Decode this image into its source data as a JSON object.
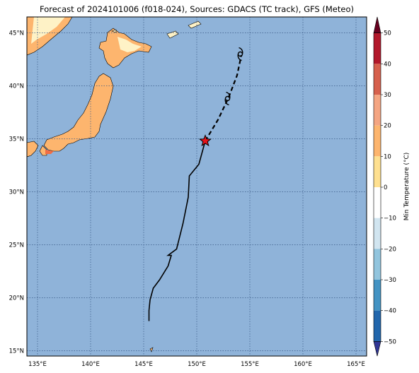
{
  "title": "Forecast of 2024101006 (f018-024), Sources: GDACS (TC track), GFS (Meteo)",
  "colors": {
    "ocean": "#8fb3d9",
    "land_warm": "#fdb56e",
    "land_cool": "#fef2c6",
    "land_hot": "#f26d45",
    "grid": "#3b5b88",
    "track": "#000000",
    "current_position": "#e8141b"
  },
  "map": {
    "lon_range": [
      134,
      166
    ],
    "lat_range": [
      14.5,
      46.5
    ],
    "lon_ticks": [
      {
        "value": 135,
        "label": "135°E"
      },
      {
        "value": 140,
        "label": "140°E"
      },
      {
        "value": 145,
        "label": "145°E"
      },
      {
        "value": 150,
        "label": "150°E"
      },
      {
        "value": 155,
        "label": "155°E"
      },
      {
        "value": 160,
        "label": "160°E"
      },
      {
        "value": 165,
        "label": "165°E"
      }
    ],
    "lat_ticks": [
      {
        "value": 15,
        "label": "15°N"
      },
      {
        "value": 20,
        "label": "20°N"
      },
      {
        "value": 25,
        "label": "25°N"
      },
      {
        "value": 30,
        "label": "30°N"
      },
      {
        "value": 35,
        "label": "35°N"
      },
      {
        "value": 40,
        "label": "40°N"
      },
      {
        "value": 45,
        "label": "45°N"
      }
    ]
  },
  "track": {
    "past": [
      [
        145.5,
        17.8
      ],
      [
        145.5,
        18.8
      ],
      [
        145.6,
        19.8
      ],
      [
        145.9,
        20.9
      ],
      [
        146.5,
        21.7
      ],
      [
        147.3,
        23.0
      ],
      [
        147.6,
        24.0
      ],
      [
        147.3,
        24.0
      ],
      [
        148.1,
        24.6
      ],
      [
        148.7,
        27.0
      ],
      [
        149.2,
        29.5
      ],
      [
        149.3,
        31.5
      ],
      [
        150.2,
        32.6
      ],
      [
        150.8,
        34.8
      ]
    ],
    "forecast": [
      [
        150.8,
        34.8
      ],
      [
        152.0,
        36.8
      ],
      [
        153.0,
        38.9
      ],
      [
        153.8,
        41.0
      ],
      [
        154.2,
        42.9
      ]
    ],
    "current": [
      150.8,
      34.8
    ],
    "storm_symbols": [
      [
        152.9,
        38.8
      ],
      [
        154.1,
        43.0
      ]
    ]
  },
  "colorbar": {
    "label": "Min Temperature (°C)",
    "ticks": [
      "50",
      "40",
      "30",
      "20",
      "10",
      "0",
      "−10",
      "−20",
      "−30",
      "−40",
      "−50"
    ],
    "colors": [
      "#67001f",
      "#b2182b",
      "#d6604d",
      "#f4a582",
      "#fdb56e",
      "#fee090",
      "#ffffff",
      "#d1e5f0",
      "#92c5de",
      "#4393c3",
      "#2166ac",
      "#313695",
      "#080880"
    ]
  }
}
